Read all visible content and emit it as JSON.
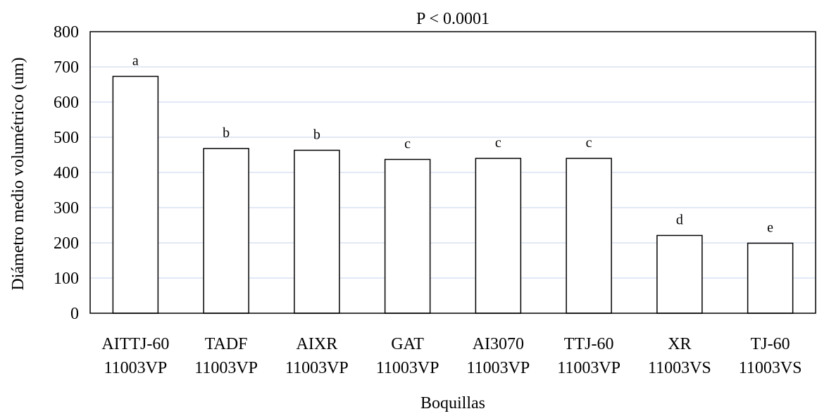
{
  "chart_data": {
    "type": "bar",
    "title": "P < 0.0001",
    "xlabel": "Boquillas",
    "ylabel": "Diámetro medio volumétrico  (um)",
    "ylim": [
      0,
      800
    ],
    "yticks": [
      0,
      100,
      200,
      300,
      400,
      500,
      600,
      700,
      800
    ],
    "grid": true,
    "categories": [
      [
        "AITTJ-60",
        "11003VP"
      ],
      [
        "TADF",
        "11003VP"
      ],
      [
        "AIXR",
        "11003VP"
      ],
      [
        "GAT",
        "11003VP"
      ],
      [
        "AI3070",
        "11003VP"
      ],
      [
        "TTJ-60",
        "11003VP"
      ],
      [
        "XR",
        "11003VS"
      ],
      [
        "TJ-60",
        "11003VS"
      ]
    ],
    "values": [
      673,
      468,
      463,
      437,
      440,
      440,
      221,
      199
    ],
    "labels": [
      "a",
      "b",
      "b",
      "c",
      "c",
      "c",
      "d",
      "e"
    ],
    "colors": {
      "bar_fill": "#ffffff",
      "bar_stroke": "#000000",
      "grid": "#d9e1f2",
      "frame": "#000000"
    }
  }
}
